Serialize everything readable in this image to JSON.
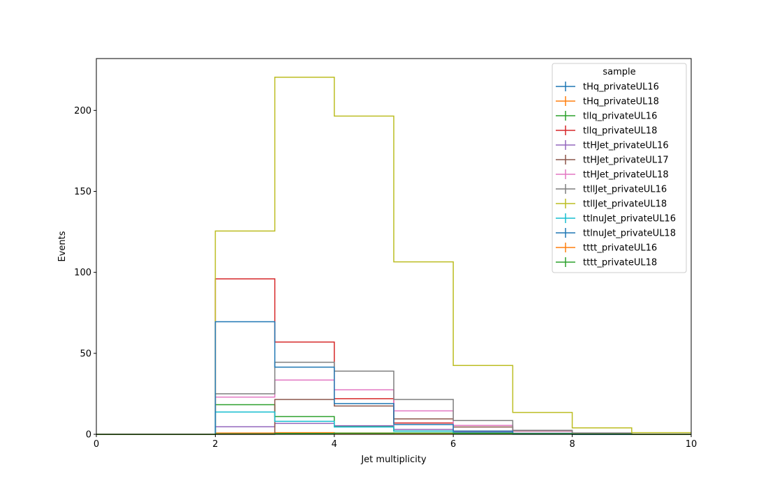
{
  "chart_data": {
    "type": "step-histogram",
    "xlabel": "Jet multiplicity",
    "ylabel": "Events",
    "xlim": [
      0,
      10
    ],
    "ylim": [
      0,
      232
    ],
    "x_ticks": [
      "0",
      "2",
      "4",
      "6",
      "8",
      "10"
    ],
    "y_ticks": [
      "0",
      "50",
      "100",
      "150",
      "200"
    ],
    "bin_edges": [
      0,
      1,
      2,
      3,
      4,
      5,
      6,
      7,
      8,
      9,
      10
    ],
    "grid": false,
    "legend": {
      "title": "sample",
      "position": "top-right"
    },
    "series": [
      {
        "name": "tHq_privateUL16",
        "color": "#1f77b4",
        "values": [
          0,
          0,
          0.3,
          0.4,
          0.3,
          0.2,
          0.1,
          0.05,
          0,
          0
        ]
      },
      {
        "name": "tHq_privateUL18",
        "color": "#ff7f0e",
        "values": [
          0,
          0,
          0.8,
          1.0,
          0.8,
          0.5,
          0.2,
          0.1,
          0,
          0
        ]
      },
      {
        "name": "tllq_privateUL16",
        "color": "#2ca02c",
        "values": [
          0,
          0,
          18.3,
          11.0,
          5.0,
          2.0,
          1.0,
          0.3,
          0.1,
          0
        ]
      },
      {
        "name": "tllq_privateUL18",
        "color": "#d62728",
        "values": [
          0,
          0,
          96.0,
          57.0,
          22.0,
          7.0,
          2.0,
          0.5,
          0.1,
          0
        ]
      },
      {
        "name": "ttHJet_privateUL16",
        "color": "#9467bd",
        "values": [
          0,
          0,
          4.7,
          6.7,
          5.3,
          3.0,
          1.5,
          0.7,
          0.2,
          0
        ]
      },
      {
        "name": "ttHJet_privateUL17",
        "color": "#8c564b",
        "values": [
          0,
          0,
          0,
          21.5,
          17.5,
          9.5,
          4.5,
          2.0,
          0.6,
          0
        ]
      },
      {
        "name": "ttHJet_privateUL18",
        "color": "#e377c2",
        "values": [
          0,
          0,
          23.0,
          33.5,
          27.5,
          14.5,
          5.5,
          2.2,
          0.8,
          0
        ]
      },
      {
        "name": "ttllJet_privateUL16",
        "color": "#7f7f7f",
        "values": [
          0,
          0,
          25.0,
          44.5,
          39.0,
          21.5,
          8.5,
          2.5,
          0.8,
          0
        ]
      },
      {
        "name": "ttllJet_privateUL18",
        "color": "#bcbd22",
        "values": [
          0,
          0,
          125.5,
          220.5,
          196.5,
          106.5,
          42.5,
          13.5,
          4.0,
          1.0
        ]
      },
      {
        "name": "ttlnuJet_privateUL16",
        "color": "#17becf",
        "values": [
          0,
          0,
          13.8,
          8.0,
          4.5,
          2.0,
          0.8,
          0.3,
          0,
          0
        ]
      },
      {
        "name": "ttlnuJet_privateUL18",
        "color": "#1f77b4",
        "values": [
          0,
          0,
          69.5,
          41.5,
          19.0,
          6.0,
          2.0,
          0.5,
          0,
          0
        ]
      },
      {
        "name": "tttt_privateUL16",
        "color": "#ff7f0e",
        "values": [
          0,
          0,
          0.1,
          0.3,
          0.4,
          0.4,
          0.3,
          0.2,
          0.1,
          0
        ]
      },
      {
        "name": "tttt_privateUL18",
        "color": "#2ca02c",
        "values": [
          0,
          0,
          0.2,
          0.5,
          0.7,
          0.8,
          0.6,
          0.4,
          0.2,
          0
        ]
      }
    ]
  }
}
